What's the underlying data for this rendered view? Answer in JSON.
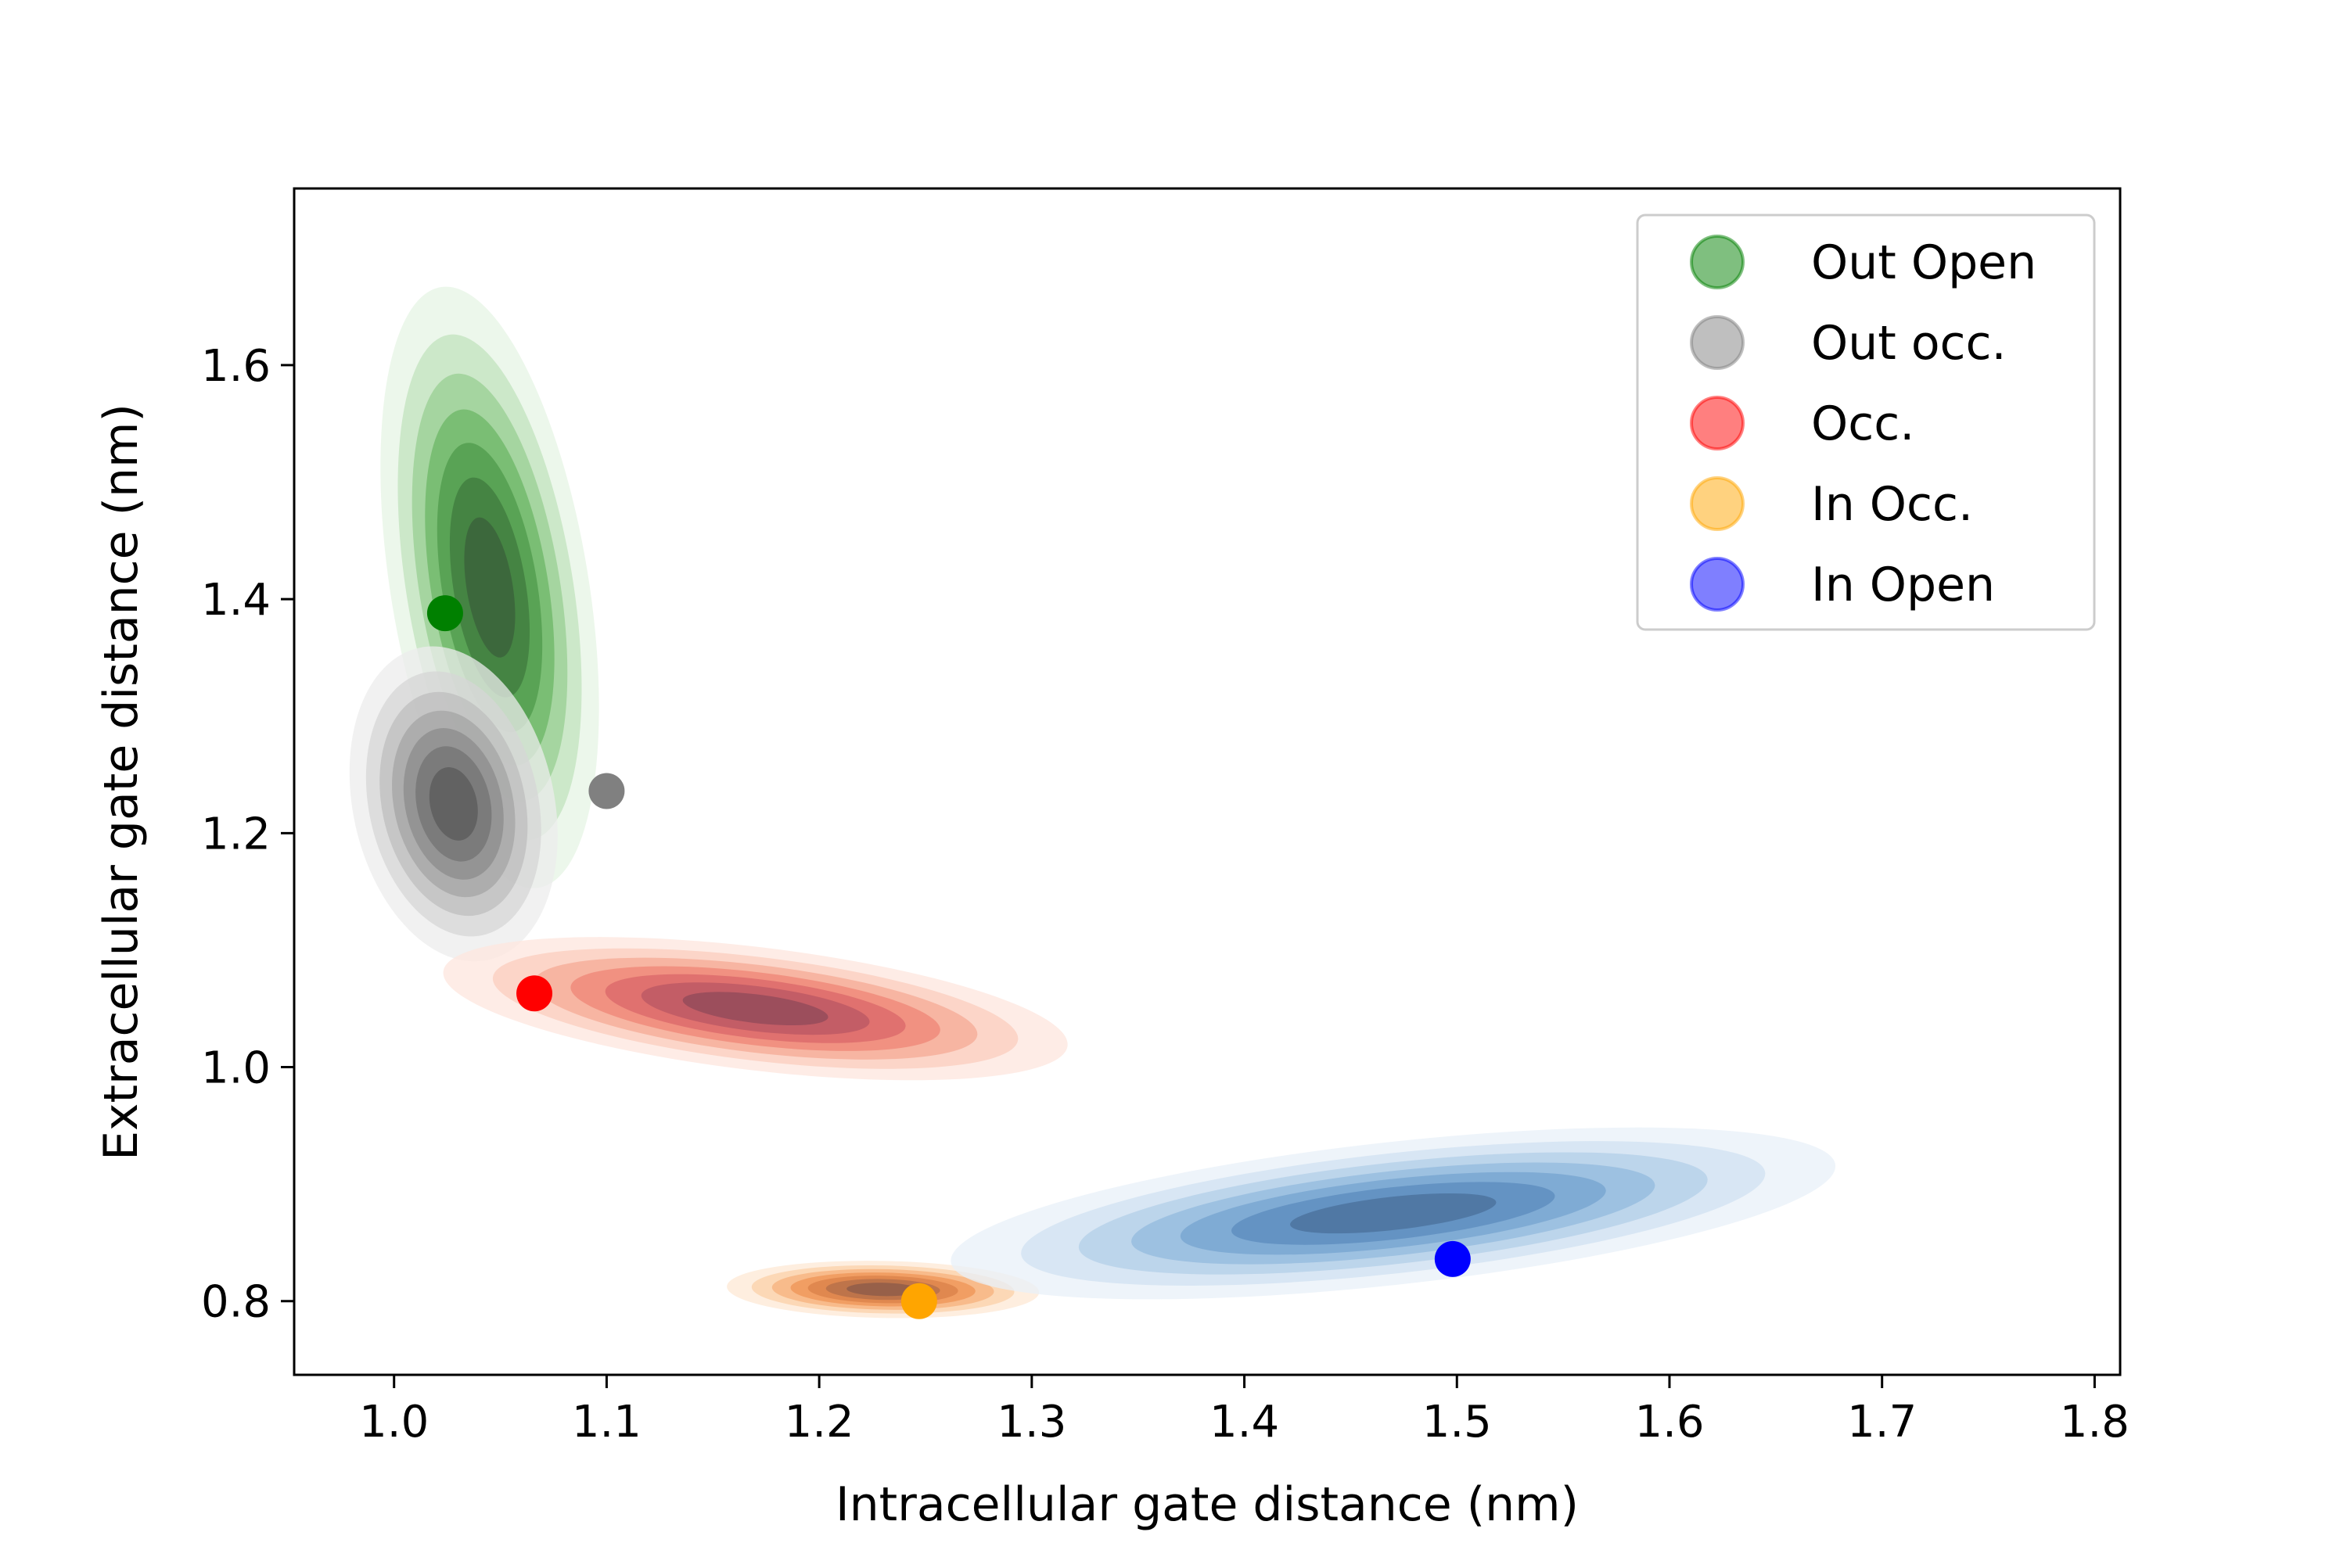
{
  "chart_data": {
    "type": "scatter",
    "title": "",
    "xlabel": "Intracellular gate distance (nm)",
    "ylabel": "Extracellular gate distance (nm)",
    "xlim": [
      0.953,
      1.812
    ],
    "ylim": [
      0.737,
      1.751
    ],
    "xticks": [
      "1.0",
      "1.1",
      "1.2",
      "1.3",
      "1.4",
      "1.5",
      "1.6",
      "1.7",
      "1.8"
    ],
    "yticks": [
      "0.8",
      "1.0",
      "1.2",
      "1.4",
      "1.6"
    ],
    "grid": false,
    "legend_position": "top-right",
    "series": [
      {
        "name": "Out Open",
        "color": "#008000",
        "point": {
          "x": 1.024,
          "y": 1.388
        },
        "density": {
          "cx": 1.045,
          "cy": 1.41,
          "sx": 0.021,
          "sy": 0.105,
          "corr": -0.4,
          "peak": 1.0
        }
      },
      {
        "name": "Out occ.",
        "color": "#808080",
        "point": {
          "x": 1.1,
          "y": 1.236
        },
        "density": {
          "cx": 1.028,
          "cy": 1.225,
          "sx": 0.02,
          "sy": 0.055,
          "corr": -0.2,
          "peak": 1.0
        }
      },
      {
        "name": "Occ.",
        "color": "#ff0000",
        "point": {
          "x": 1.066,
          "y": 1.063
        },
        "density": {
          "cx": 1.17,
          "cy": 1.05,
          "sx": 0.06,
          "sy": 0.025,
          "corr": -0.5,
          "peak": 1.0
        }
      },
      {
        "name": "In Occ.",
        "color": "#ffa500",
        "point": {
          "x": 1.247,
          "y": 0.8
        },
        "density": {
          "cx": 1.23,
          "cy": 0.81,
          "sx": 0.03,
          "sy": 0.01,
          "corr": -0.1,
          "peak": 1.0
        }
      },
      {
        "name": "In Open",
        "color": "#0000ff",
        "point": {
          "x": 1.498,
          "y": 0.836
        },
        "density": {
          "cx": 1.47,
          "cy": 0.875,
          "sx": 0.085,
          "sy": 0.03,
          "corr": 0.55,
          "peak": 1.0
        }
      }
    ],
    "density_colors": {
      "Out Open": [
        "#e6f4e4",
        "#c2e3bd",
        "#98cf91",
        "#6cb565",
        "#4f9a4b",
        "#3f7a3e",
        "#3a5f3a"
      ],
      "Out occ.": [
        "#ececec",
        "#d6d6d6",
        "#bdbdbd",
        "#a4a4a4",
        "#8c8c8c",
        "#737373",
        "#5a5a5a"
      ],
      "Occ.": [
        "#fde6de",
        "#fbcdbd",
        "#f6a996",
        "#ef8576",
        "#d9676a",
        "#b95763",
        "#8f4a5a"
      ],
      "In Occ.": [
        "#fde8d4",
        "#fbd0a8",
        "#f7b27c",
        "#ef9455",
        "#d98048",
        "#b36d48",
        "#8a5a4a"
      ],
      "In Open": [
        "#e8f0f8",
        "#d0e1f1",
        "#b3cfe8",
        "#93badd",
        "#75a3cf",
        "#5b8bbd",
        "#4a6f9a"
      ]
    }
  }
}
